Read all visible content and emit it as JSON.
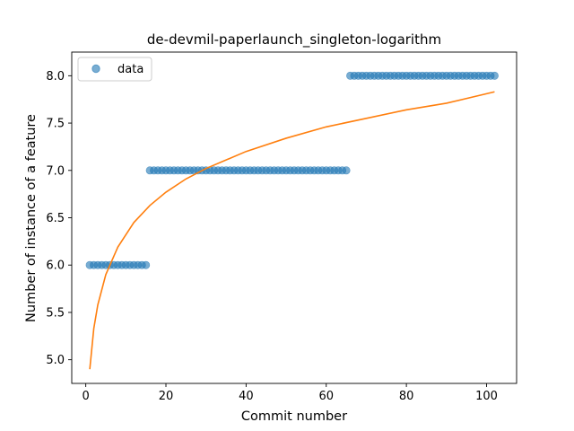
{
  "chart_data": {
    "type": "scatter",
    "title": "de-devmil-paperlaunch_singleton-logarithm",
    "xlabel": "Commit number",
    "ylabel": "Number of instance of a feature",
    "xlim": [
      -3.5,
      107.5
    ],
    "ylim": [
      4.75,
      8.25
    ],
    "xticks": [
      "0",
      "20",
      "40",
      "60",
      "80",
      "100"
    ],
    "yticks": [
      "5.0",
      "5.5",
      "6.0",
      "6.5",
      "7.0",
      "7.5",
      "8.0"
    ],
    "grid": false,
    "legend": {
      "position": "top-left",
      "entries": [
        "data"
      ]
    },
    "series": [
      {
        "name": "data",
        "kind": "scatter",
        "color": "#1f77b4",
        "segments": [
          {
            "x_start": 1,
            "x_end": 15,
            "y": 6.0
          },
          {
            "x_start": 16,
            "x_end": 65,
            "y": 7.0
          },
          {
            "x_start": 66,
            "x_end": 102,
            "y": 8.0
          }
        ]
      },
      {
        "kind": "line",
        "color": "#ff7f0e",
        "x": [
          1,
          2,
          3,
          5,
          8,
          12,
          16,
          20,
          25,
          30,
          40,
          50,
          60,
          70,
          80,
          90,
          102
        ],
        "y": [
          4.9,
          5.33,
          5.58,
          5.9,
          6.19,
          6.45,
          6.63,
          6.77,
          6.91,
          7.02,
          7.2,
          7.34,
          7.46,
          7.55,
          7.64,
          7.71,
          7.83
        ]
      }
    ]
  }
}
